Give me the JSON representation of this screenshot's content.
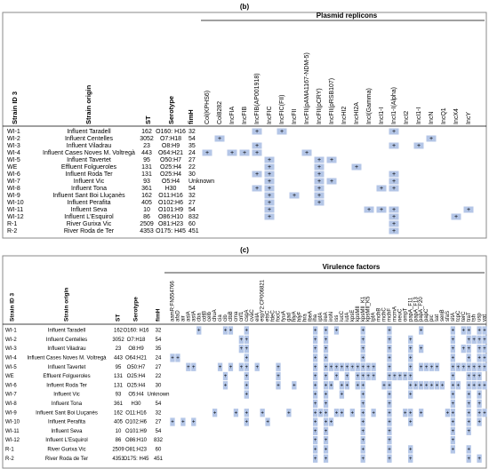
{
  "panel_b": {
    "label": "(b)",
    "group_title": "Plasmid replicons",
    "marker_symbol": "+",
    "columns": [
      "Strain ID 3",
      "Strain origin",
      "ST",
      "Serotype",
      "fimH"
    ],
    "markers": [
      "Col(KPHS6)",
      "Col8282",
      "IncFIA",
      "IncFIB",
      "IncFIB(AP001918)",
      "IncFIC",
      "IncFIC(FII)",
      "IncFII",
      "IncFII(pAMA1167-NDM-5)",
      "IncFII(pCRY)",
      "IncFII(pRSB107)",
      "IncHI2",
      "IncHI2A",
      "IncI(Gamma)",
      "IncI1-I",
      "IncI1-I(Alpha)",
      "IncI2",
      "IncI1-I",
      "IncN",
      "IncQ1",
      "IncX4",
      "IncY"
    ],
    "rows": [
      {
        "cells": [
          "WI-1",
          "Influent Taradell",
          "162",
          "O160: H16",
          "32"
        ],
        "hits": [
          4,
          6,
          15
        ]
      },
      {
        "cells": [
          "WI-2",
          "Influent Centelles",
          "3052",
          "O7:H18",
          "54"
        ],
        "hits": [
          1,
          18
        ]
      },
      {
        "cells": [
          "WI-3",
          "Influent Viladrau",
          "23",
          "O8:H9",
          "35"
        ],
        "hits": [
          4,
          15,
          17
        ]
      },
      {
        "cells": [
          "WI-4",
          "Influent Cases Noves M. Voltregà",
          "443",
          "O64:H21",
          "24"
        ],
        "hits": [
          0,
          2,
          3,
          4,
          8
        ]
      },
      {
        "cells": [
          "WI-5",
          "Influent Tavertet",
          "95",
          "O50:H7",
          "27"
        ],
        "hits": [
          5,
          9,
          10
        ]
      },
      {
        "cells": [
          "WE",
          "Effluent Folgueroles",
          "131",
          "O25:H4",
          "22"
        ],
        "hits": [
          5,
          9,
          12
        ]
      },
      {
        "cells": [
          "WI-6",
          "Influent Roda Ter",
          "131",
          "O25:H4",
          "30"
        ],
        "hits": [
          4,
          5,
          9,
          15
        ]
      },
      {
        "cells": [
          "WI-7",
          "Influent Vic",
          "93",
          "O5:H4",
          "Unknown"
        ],
        "hits": [
          5,
          9,
          10,
          15
        ]
      },
      {
        "cells": [
          "WI-8",
          "Influent Tona",
          "361",
          "H30",
          "54"
        ],
        "hits": [
          4,
          5,
          9,
          14,
          15
        ]
      },
      {
        "cells": [
          "WI-9",
          "Influent Sant Boi Lluçanès",
          "162",
          "O11:H16",
          "32"
        ],
        "hits": [
          5,
          7,
          9
        ]
      },
      {
        "cells": [
          "WI-10",
          "Influent Perafita",
          "405",
          "O102:H6",
          "27"
        ],
        "hits": [
          5,
          9
        ]
      },
      {
        "cells": [
          "WI-11",
          "Influent Seva",
          "10",
          "O101:H9",
          "54"
        ],
        "hits": [
          5,
          13,
          14,
          15,
          21
        ]
      },
      {
        "cells": [
          "WI-12",
          "Influent L'Esquirol",
          "86",
          "O86:H10",
          "832"
        ],
        "hits": [
          5,
          15,
          20
        ]
      },
      {
        "cells": [
          "R-1",
          "River Gurixa Vic",
          "2509",
          "O81:H23",
          "60"
        ],
        "hits": [
          15
        ]
      },
      {
        "cells": [
          "R-2",
          "River Roda de Ter",
          "4353",
          "O175: H45",
          "451"
        ],
        "hits": [
          15
        ]
      }
    ]
  },
  "panel_c": {
    "label": "(c)",
    "group_title": "Virulence factors",
    "marker_symbol": "+",
    "columns": [
      "Strain ID 3",
      "Strain origin",
      "ST",
      "Serotype",
      "fimH"
    ],
    "markers": [
      "aamR:FN554766",
      "afaD",
      "air",
      "aslA",
      "astA",
      "cba",
      "cdtB",
      "celb",
      "chuA",
      "cia",
      "cib",
      "clbB",
      "cma",
      "cnf1",
      "csgA",
      "cvaC",
      "eilA",
      "espY2:CP006821",
      "etsC",
      "fdeC",
      "focC",
      "fyuA",
      "gad",
      "hlyA",
      "hlyF",
      "hra",
      "ibeA",
      "iha",
      "ipfA",
      "ireA",
      "iroN",
      "iss",
      "iucC",
      "iutA",
      "kpsE",
      "kpsMII",
      "kpsMII_K1",
      "kpsMII_K5",
      "lpfA",
      "mchB",
      "mchC",
      "mchF",
      "mcmA",
      "neuC",
      "ompT",
      "papA_F11",
      "papA_F13",
      "papA_F20",
      "papC",
      "pic",
      "sat",
      "senB",
      "sfaS",
      "sitA",
      "tcpC",
      "terC",
      "traT",
      "tsh",
      "usp",
      "vat"
    ],
    "rows": [
      {
        "cells": [
          "WI-1",
          "Influent Taradell",
          "162",
          "O160: H16",
          "32"
        ],
        "hits": [
          5,
          10,
          11,
          14,
          27,
          29,
          31,
          36,
          41,
          47,
          53,
          55,
          56,
          58,
          59
        ]
      },
      {
        "cells": [
          "WI-2",
          "Influent Centelles",
          "3052",
          "O7:H18",
          "54"
        ],
        "hits": [
          13,
          14,
          27,
          29,
          36,
          41,
          45,
          53,
          56,
          57,
          58,
          59
        ]
      },
      {
        "cells": [
          "WI-3",
          "Influent Viladrau",
          "23",
          "O8:H9",
          "35"
        ],
        "hits": [
          13,
          14,
          27,
          29,
          36,
          41,
          45,
          47,
          53,
          55,
          56,
          58,
          59
        ]
      },
      {
        "cells": [
          "WI-4",
          "Influent Cases Noves M. Voltregà",
          "443",
          "O64:H21",
          "24"
        ],
        "hits": [
          0,
          1,
          14,
          27,
          29,
          36,
          41,
          45,
          53,
          56,
          58,
          59
        ]
      },
      {
        "cells": [
          "WI-5",
          "Influent Tavertet",
          "95",
          "O50:H7",
          "27"
        ],
        "hits": [
          3,
          4,
          9,
          11,
          13,
          14,
          16,
          20,
          27,
          29,
          30,
          31,
          32,
          33,
          34,
          35,
          36,
          37,
          38,
          41,
          45,
          47,
          48,
          49,
          50,
          53,
          54,
          55,
          56,
          57,
          58,
          59
        ]
      },
      {
        "cells": [
          "WE",
          "Effluent Folgueroles",
          "131",
          "O25:H4",
          "22"
        ],
        "hits": [
          10,
          14,
          20,
          27,
          29,
          31,
          33,
          35,
          36,
          37,
          38,
          41,
          42,
          43,
          44,
          45,
          53,
          56,
          57,
          58
        ]
      },
      {
        "cells": [
          "WI-6",
          "Influent Roda Ter",
          "131",
          "O25:H4",
          "30"
        ],
        "hits": [
          10,
          14,
          20,
          23,
          27,
          29,
          30,
          32,
          33,
          35,
          36,
          40,
          41,
          45,
          46,
          47,
          48,
          49,
          50,
          51,
          53,
          54,
          56,
          57,
          58,
          59
        ]
      },
      {
        "cells": [
          "WI-7",
          "Influent Vic",
          "93",
          "O5:H4",
          "Unknown"
        ],
        "hits": [
          14,
          27,
          29,
          32,
          36,
          41,
          45,
          53,
          56,
          58
        ]
      },
      {
        "cells": [
          "WI-8",
          "Influent Tona",
          "361",
          "H30",
          "54"
        ],
        "hits": [
          27,
          29,
          36,
          41,
          53,
          56,
          58
        ]
      },
      {
        "cells": [
          "WI-9",
          "Influent Sant Boi Lluçanès",
          "162",
          "O11:H16",
          "32"
        ],
        "hits": [
          8,
          12,
          14,
          17,
          22,
          27,
          28,
          29,
          31,
          32,
          34,
          36,
          38,
          41,
          44,
          45,
          47,
          52,
          53,
          56,
          58,
          59
        ]
      },
      {
        "cells": [
          "WI-10",
          "Influent Perafita",
          "405",
          "O102:H6",
          "27"
        ],
        "hits": [
          0,
          2,
          4,
          14,
          18,
          27,
          29,
          30,
          36,
          41,
          45,
          53,
          56,
          58
        ]
      },
      {
        "cells": [
          "WI-11",
          "Influent Seva",
          "10",
          "O101:H9",
          "54"
        ],
        "hits": [
          27,
          29,
          36,
          41,
          53,
          56
        ]
      },
      {
        "cells": [
          "WI-12",
          "Influent L'Esquirol",
          "86",
          "O86:H10",
          "832"
        ],
        "hits": [
          27,
          29,
          36,
          41,
          53
        ]
      },
      {
        "cells": [
          "R-1",
          "River Gurixa Vic",
          "2509",
          "O81:H23",
          "60"
        ],
        "hits": [
          27,
          29,
          36,
          41,
          45,
          53,
          56
        ]
      },
      {
        "cells": [
          "R-2",
          "River Roda de Ter",
          "4353",
          "O175: H45",
          "451"
        ],
        "hits": [
          27,
          29,
          36,
          41,
          45,
          56,
          58
        ]
      }
    ]
  }
}
